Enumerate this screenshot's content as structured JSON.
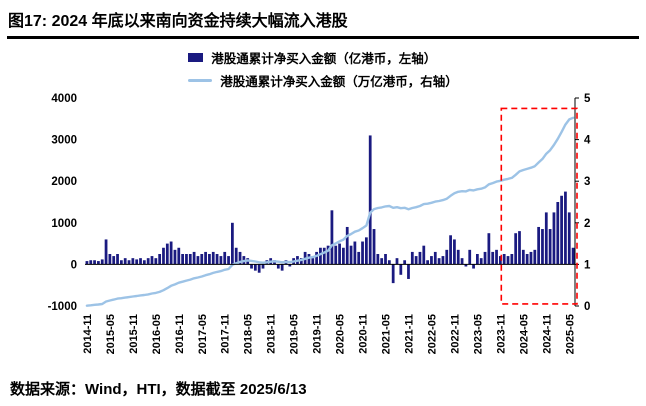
{
  "title": "图17:  2024 年底以来南向资金持续大幅流入港股",
  "footer": "数据来源：Wind，HTI，数据截至 2025/6/13",
  "legend": [
    {
      "label": "港股通累计净买入金额（亿港币，左轴）",
      "marker": "bar-swatch"
    },
    {
      "label": "港股通累计净买入金额（万亿港币，右轴）",
      "marker": "line-swatch"
    }
  ],
  "colors": {
    "bar": "#1A1A80",
    "line": "#9DC3E6",
    "highlight": "#FF0000",
    "axis": "#000000"
  },
  "chart_data": {
    "type": "bar+line combo",
    "title": "2024 年底以来南向资金持续大幅流入港股",
    "x_frequency": "monthly",
    "x_start": "2014-11",
    "x_end": "2025-06",
    "x_tick_labels": [
      "2014-11",
      "2015-05",
      "2015-11",
      "2016-05",
      "2016-11",
      "2017-05",
      "2017-11",
      "2018-05",
      "2018-11",
      "2019-05",
      "2019-11",
      "2020-05",
      "2020-11",
      "2021-05",
      "2021-11",
      "2022-05",
      "2022-11",
      "2023-05",
      "2023-11",
      "2024-05",
      "2024-11",
      "2025-05"
    ],
    "x_tick_step_months": 6,
    "left_axis": {
      "label": "亿港币",
      "range": [
        -1000,
        4000
      ],
      "ticks": [
        -1000,
        0,
        1000,
        2000,
        3000,
        4000
      ]
    },
    "right_axis": {
      "label": "万亿港币",
      "range": [
        0,
        5
      ],
      "ticks": [
        0,
        1,
        2,
        3,
        4,
        5
      ]
    },
    "grid": false,
    "legend_position": "top-center",
    "series": [
      {
        "name": "港股通累计净买入金额（亿港币，左轴）",
        "type": "bar",
        "axis": "left",
        "color": "#1A1A80",
        "values": [
          80,
          100,
          100,
          80,
          120,
          600,
          250,
          200,
          250,
          100,
          150,
          100,
          150,
          120,
          150,
          100,
          150,
          200,
          150,
          250,
          400,
          500,
          550,
          350,
          400,
          250,
          250,
          250,
          300,
          200,
          250,
          300,
          250,
          300,
          250,
          200,
          300,
          200,
          1000,
          400,
          300,
          200,
          150,
          -100,
          -150,
          -200,
          -100,
          100,
          150,
          100,
          -100,
          -150,
          100,
          -50,
          150,
          200,
          150,
          300,
          250,
          150,
          300,
          400,
          400,
          450,
          1300,
          450,
          500,
          400,
          900,
          450,
          550,
          300,
          550,
          650,
          3100,
          850,
          250,
          150,
          250,
          100,
          -450,
          150,
          -250,
          100,
          -350,
          300,
          200,
          300,
          450,
          100,
          200,
          300,
          150,
          200,
          350,
          700,
          600,
          350,
          150,
          -50,
          350,
          -100,
          250,
          150,
          300,
          750,
          300,
          350,
          200,
          250,
          200,
          250,
          750,
          800,
          350,
          250,
          300,
          350,
          900,
          850,
          1250,
          850,
          1250,
          1500,
          1650,
          1750,
          1250,
          400
        ]
      },
      {
        "name": "港股通累计净买入金额（万亿港币，右轴）",
        "type": "line",
        "axis": "right",
        "color": "#9DC3E6",
        "derivation": "cumulative_sum_of_bar_values_divided_by_10000",
        "start_value": 0.01,
        "end_value": 4.53
      }
    ],
    "highlight_box": {
      "x_start": "2023-12",
      "x_end": "2025-06",
      "top_left_value": 3750,
      "bottom_left_value": -950,
      "color": "#FF0000",
      "style": "dashed"
    }
  }
}
